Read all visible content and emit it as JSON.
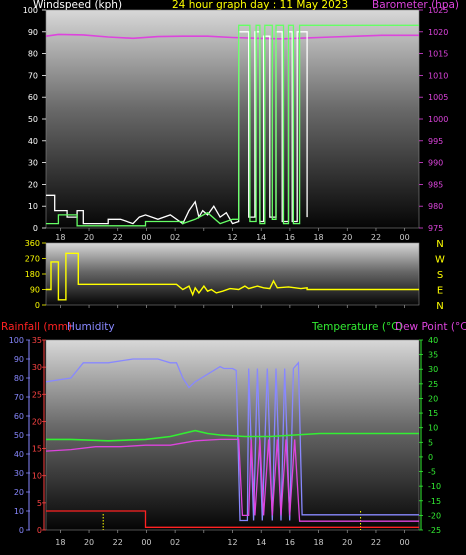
{
  "colors": {
    "background": "#000000",
    "wind": "#ffffff",
    "gust": "#66ff66",
    "barometer": "#dd44dd",
    "winddir": "#ffff00",
    "rain": "#ff2222",
    "humidity": "#8888ff",
    "temperature": "#33ee33",
    "dewpoint": "#dd44dd",
    "rain_axis": "#ff4444",
    "humidity_axis": "#8888ff",
    "temp_axis": "#33ee33"
  },
  "chart_data": [
    {
      "id": "wind-baro",
      "type": "line",
      "title": "24 hour graph day : 11 May 2023",
      "ylabel": "Windspeed (kph)",
      "y2label": "Barometer (hpa)",
      "ylim": [
        0,
        100
      ],
      "y2lim": [
        975,
        1025
      ],
      "yticks": [
        "0",
        "10",
        "20",
        "30",
        "40",
        "50",
        "60",
        "70",
        "80",
        "90",
        "100"
      ],
      "y2ticks": [
        "975",
        "980",
        "985",
        "990",
        "995",
        "1000",
        "1005",
        "1010",
        "1015",
        "1020",
        "1025"
      ],
      "xticks": [
        "18",
        "20",
        "22",
        "00",
        "02",
        "",
        "12",
        "14",
        "16",
        "18",
        "20",
        "22",
        "00"
      ],
      "xlim": [
        0,
        30
      ],
      "grid": false,
      "series": [
        {
          "key": "barometer",
          "axis": "y2",
          "values": [
            [
              0,
              1019
            ],
            [
              1,
              1019.4
            ],
            [
              3,
              1019.3
            ],
            [
              5,
              1018.8
            ],
            [
              7,
              1018.5
            ],
            [
              9,
              1018.9
            ],
            [
              11,
              1019
            ],
            [
              13,
              1019
            ],
            [
              15,
              1018.7
            ],
            [
              17,
              1018.5
            ],
            [
              19,
              1018.4
            ],
            [
              21,
              1018.6
            ],
            [
              23,
              1018.8
            ],
            [
              25,
              1019
            ],
            [
              27,
              1019.2
            ],
            [
              30,
              1019.2
            ]
          ]
        },
        {
          "key": "wind",
          "axis": "y",
          "values": [
            [
              0,
              15
            ],
            [
              0.7,
              15
            ],
            [
              0.7,
              8
            ],
            [
              1.7,
              8
            ],
            [
              1.7,
              5
            ],
            [
              2.5,
              5
            ],
            [
              2.5,
              8
            ],
            [
              3,
              8
            ],
            [
              3,
              2
            ],
            [
              5,
              2
            ],
            [
              5,
              4
            ],
            [
              6,
              4
            ],
            [
              7,
              2
            ],
            [
              7.5,
              5
            ],
            [
              8,
              6
            ],
            [
              9,
              4
            ],
            [
              10,
              6
            ],
            [
              11,
              2
            ],
            [
              11.5,
              8
            ],
            [
              12,
              12
            ],
            [
              12.3,
              5
            ],
            [
              12.6,
              8
            ],
            [
              13,
              6
            ],
            [
              13.5,
              10
            ],
            [
              14,
              5
            ],
            [
              14.5,
              7
            ],
            [
              15,
              2
            ],
            [
              15.5,
              3
            ],
            [
              15.5,
              90
            ],
            [
              16.3,
              90
            ],
            [
              16.3,
              5
            ],
            [
              16.8,
              5
            ],
            [
              16.8,
              90
            ],
            [
              17.2,
              90
            ],
            [
              17.2,
              3
            ],
            [
              17.5,
              3
            ],
            [
              17.5,
              88
            ],
            [
              18,
              88
            ],
            [
              18,
              5
            ],
            [
              18.5,
              5
            ],
            [
              18.5,
              90
            ],
            [
              19,
              90
            ],
            [
              19,
              3
            ],
            [
              19.5,
              3
            ],
            [
              19.5,
              90
            ],
            [
              19.8,
              90
            ],
            [
              19.8,
              3
            ],
            [
              20.2,
              3
            ],
            [
              20.2,
              90
            ],
            [
              21,
              90
            ],
            [
              21,
              5
            ]
          ]
        },
        {
          "key": "gust",
          "axis": "y",
          "values": [
            [
              0,
              2
            ],
            [
              1,
              2
            ],
            [
              1,
              6
            ],
            [
              2.5,
              6
            ],
            [
              2.5,
              1
            ],
            [
              8,
              1
            ],
            [
              8,
              3
            ],
            [
              11,
              3
            ],
            [
              11,
              2
            ],
            [
              12,
              4
            ],
            [
              13,
              7
            ],
            [
              14,
              2
            ],
            [
              15,
              4
            ],
            [
              15.5,
              4
            ],
            [
              15.5,
              93
            ],
            [
              16.4,
              93
            ],
            [
              16.4,
              3
            ],
            [
              16.9,
              3
            ],
            [
              16.9,
              93
            ],
            [
              17.2,
              93
            ],
            [
              17.2,
              2
            ],
            [
              17.6,
              2
            ],
            [
              17.6,
              93
            ],
            [
              18.2,
              93
            ],
            [
              18.2,
              4
            ],
            [
              18.5,
              4
            ],
            [
              18.5,
              93
            ],
            [
              19.1,
              93
            ],
            [
              19.1,
              2
            ],
            [
              19.5,
              2
            ],
            [
              19.5,
              93
            ],
            [
              19.9,
              93
            ],
            [
              19.9,
              2
            ],
            [
              20.4,
              2
            ],
            [
              20.4,
              93
            ],
            [
              30,
              93
            ]
          ]
        }
      ]
    },
    {
      "id": "wind-direction",
      "type": "line",
      "ylim": [
        0,
        360
      ],
      "yticks": [
        "0",
        "90",
        "180",
        "270",
        "360"
      ],
      "compass": [
        "N",
        "W",
        "S",
        "E",
        "N"
      ],
      "xlim": [
        0,
        30
      ],
      "series": [
        {
          "key": "winddir",
          "values": [
            [
              0,
              90
            ],
            [
              0.4,
              90
            ],
            [
              0.4,
              250
            ],
            [
              1,
              250
            ],
            [
              1,
              30
            ],
            [
              1.6,
              30
            ],
            [
              1.6,
              300
            ],
            [
              2.6,
              300
            ],
            [
              2.6,
              120
            ],
            [
              10.5,
              120
            ],
            [
              11,
              90
            ],
            [
              11.5,
              110
            ],
            [
              11.8,
              60
            ],
            [
              12,
              100
            ],
            [
              12.3,
              70
            ],
            [
              12.7,
              110
            ],
            [
              13,
              80
            ],
            [
              13.3,
              90
            ],
            [
              13.7,
              70
            ],
            [
              14.2,
              80
            ],
            [
              14.8,
              95
            ],
            [
              15.5,
              90
            ],
            [
              16,
              110
            ],
            [
              16.3,
              95
            ],
            [
              17,
              110
            ],
            [
              17.5,
              100
            ],
            [
              18,
              95
            ],
            [
              18.3,
              140
            ],
            [
              18.6,
              100
            ],
            [
              19.5,
              105
            ],
            [
              20.5,
              95
            ],
            [
              21,
              100
            ],
            [
              21,
              90
            ],
            [
              30,
              90
            ]
          ]
        }
      ]
    },
    {
      "id": "rain-humidity-temp",
      "type": "line",
      "label_rain": "Rainfall (mm)",
      "label_humidity": "Humidity",
      "label_temp": "Temperature (°C)",
      "label_dew": "Dew Point (°C)",
      "ylim_humidity": [
        0,
        100
      ],
      "ylim_rain": [
        0,
        35
      ],
      "ylim_temp": [
        -25,
        40
      ],
      "yticks_humidity": [
        "0",
        "10",
        "20",
        "30",
        "40",
        "50",
        "60",
        "70",
        "80",
        "90",
        "100"
      ],
      "yticks_rain": [
        "0",
        "5",
        "10",
        "15",
        "20",
        "25",
        "30",
        "35"
      ],
      "yticks_temp": [
        "-25",
        "-20",
        "-15",
        "-10",
        "-5",
        "0",
        "5",
        "10",
        "15",
        "20",
        "25",
        "30",
        "35",
        "40"
      ],
      "xticks": [
        "18",
        "20",
        "22",
        "00",
        "02",
        "",
        "12",
        "14",
        "16",
        "18",
        "20",
        "22",
        "00"
      ],
      "xlim": [
        0,
        30
      ],
      "series": [
        {
          "key": "humidity",
          "axis": "humidity",
          "values": [
            [
              0,
              78
            ],
            [
              1,
              79
            ],
            [
              2,
              80
            ],
            [
              3,
              88
            ],
            [
              5,
              88
            ],
            [
              7,
              90
            ],
            [
              9,
              90
            ],
            [
              10,
              88
            ],
            [
              10.5,
              88
            ],
            [
              11,
              80
            ],
            [
              11.5,
              75
            ],
            [
              12,
              78
            ],
            [
              12.5,
              80
            ],
            [
              13,
              82
            ],
            [
              14,
              86
            ],
            [
              14.3,
              85
            ],
            [
              15,
              85
            ],
            [
              15.3,
              84
            ],
            [
              15.6,
              5
            ],
            [
              16.2,
              5
            ],
            [
              16.3,
              85
            ],
            [
              16.7,
              5
            ],
            [
              17,
              85
            ],
            [
              17.4,
              5
            ],
            [
              17.8,
              85
            ],
            [
              18.2,
              5
            ],
            [
              18.5,
              85
            ],
            [
              18.9,
              5
            ],
            [
              19.2,
              85
            ],
            [
              19.6,
              5
            ],
            [
              19.9,
              85
            ],
            [
              20.3,
              88
            ],
            [
              20.6,
              8
            ],
            [
              30,
              8
            ]
          ]
        },
        {
          "key": "temperature",
          "axis": "temp",
          "values": [
            [
              0,
              6
            ],
            [
              2,
              6
            ],
            [
              5,
              5.5
            ],
            [
              8,
              6
            ],
            [
              10,
              7
            ],
            [
              12,
              9
            ],
            [
              13,
              8
            ],
            [
              14,
              7.5
            ],
            [
              16,
              7
            ],
            [
              18,
              7
            ],
            [
              20,
              7.5
            ],
            [
              22,
              8
            ],
            [
              25,
              8
            ],
            [
              28,
              8
            ],
            [
              30,
              8
            ]
          ]
        },
        {
          "key": "dewpoint",
          "axis": "temp",
          "values": [
            [
              0,
              2
            ],
            [
              2,
              2.5
            ],
            [
              4,
              3.5
            ],
            [
              6,
              3.5
            ],
            [
              8,
              4
            ],
            [
              10,
              4
            ],
            [
              12,
              5.5
            ],
            [
              14,
              6
            ],
            [
              15.5,
              6
            ],
            [
              15.8,
              -20
            ],
            [
              16.3,
              -20
            ],
            [
              16.5,
              6
            ],
            [
              16.8,
              -20
            ],
            [
              17.2,
              6
            ],
            [
              17.5,
              -20
            ],
            [
              17.9,
              6
            ],
            [
              18.2,
              -20
            ],
            [
              18.6,
              6
            ],
            [
              18.9,
              -20
            ],
            [
              19.3,
              6
            ],
            [
              19.6,
              -20
            ],
            [
              20,
              6
            ],
            [
              20.4,
              -22
            ],
            [
              30,
              -22
            ]
          ]
        },
        {
          "key": "rain",
          "axis": "rain",
          "values": [
            [
              0,
              3.5
            ],
            [
              8,
              3.5
            ],
            [
              8,
              0.5
            ],
            [
              30,
              0.5
            ]
          ]
        }
      ]
    }
  ]
}
